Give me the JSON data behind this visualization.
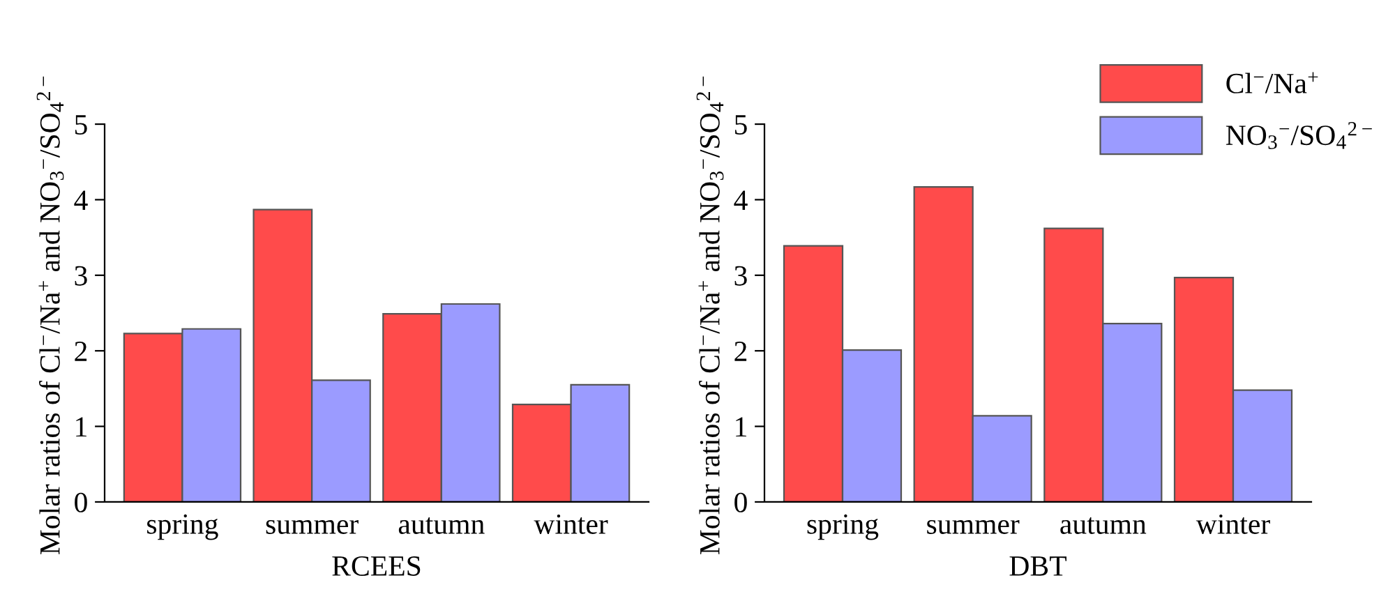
{
  "chart_data": [
    {
      "type": "bar",
      "xlabel": "RCEES",
      "ylabel": "Molar ratios of Cl$^{−}$/Na$^{+}$ and NO$_{3}$$^{−}$/SO$_{4}$$^{2−}$",
      "categories": [
        "spring",
        "summer",
        "autumn",
        "winter"
      ],
      "series": [
        {
          "color": "#ff4b4b",
          "values": [
            2.23,
            3.87,
            2.49,
            1.29
          ]
        },
        {
          "color": "#9b9bff",
          "values": [
            2.29,
            1.61,
            2.62,
            1.55
          ]
        }
      ],
      "ylim": [
        0,
        5
      ],
      "yticks": [
        0,
        1,
        2,
        3,
        4,
        5
      ],
      "grid": false,
      "legend": false
    },
    {
      "type": "bar",
      "xlabel": "DBT",
      "ylabel": "Molar ratios of Cl$^{−}$/Na$^{+}$ and NO$_{3}$$^{−}$/SO$_{4}$$^{2−}$",
      "categories": [
        "spring",
        "summer",
        "autumn",
        "winter"
      ],
      "series": [
        {
          "name": "Cl$^{−}$/Na$^{+}$",
          "color": "#ff4b4b",
          "values": [
            3.39,
            4.17,
            3.62,
            2.97
          ]
        },
        {
          "name": "NO$_{3}$$^{−}$/SO$_{4}$$^{2−}$",
          "color": "#9b9bff",
          "values": [
            2.01,
            1.14,
            2.36,
            1.48
          ]
        }
      ],
      "ylim": [
        0,
        5
      ],
      "yticks": [
        0,
        1,
        2,
        3,
        4,
        5
      ],
      "grid": false,
      "legend": "top right"
    }
  ]
}
